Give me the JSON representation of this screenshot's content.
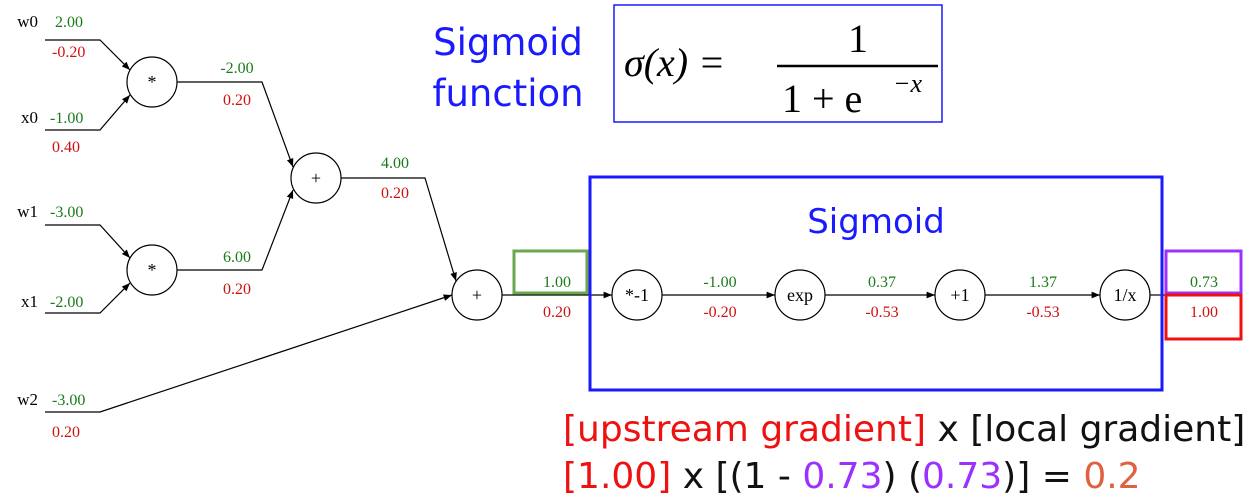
{
  "inputs": [
    {
      "name": "w0",
      "value": "2.00",
      "gradient": "-0.20"
    },
    {
      "name": "x0",
      "value": "-1.00",
      "gradient": "0.40"
    },
    {
      "name": "w1",
      "value": "-3.00"
    },
    {
      "name": "x1",
      "value": "-2.00"
    },
    {
      "name": "w2",
      "value": "-3.00",
      "gradient": "0.20"
    }
  ],
  "nodes": [
    {
      "op": "*",
      "value": "-2.00",
      "gradient": "0.20"
    },
    {
      "op": "*",
      "value": "6.00",
      "gradient": "0.20"
    },
    {
      "op": "+",
      "value": "4.00",
      "gradient": "0.20"
    },
    {
      "op": "+",
      "value": "1.00",
      "gradient": "0.20"
    },
    {
      "op": "*-1",
      "value": "-1.00",
      "gradient": "-0.20"
    },
    {
      "op": "exp",
      "value": "0.37",
      "gradient": "-0.53"
    },
    {
      "op": "+1",
      "value": "1.37",
      "gradient": "-0.53"
    },
    {
      "op": "1/x",
      "value": "0.73",
      "gradient": "1.00"
    }
  ],
  "sigmoid_caption": [
    "Sigmoid",
    "function"
  ],
  "formula": {
    "lhs": "σ(x) =",
    "numerator": "1",
    "denominator": "1 + e",
    "exponent": "−x"
  },
  "box_title": "Sigmoid",
  "explanation": {
    "line1": [
      "[upstream gradient]",
      " x [local gradient]"
    ],
    "line2": [
      "[1.00]",
      " x [(1 - ",
      "0.73",
      ") (",
      "0.73",
      ")] = ",
      "0.2"
    ]
  }
}
